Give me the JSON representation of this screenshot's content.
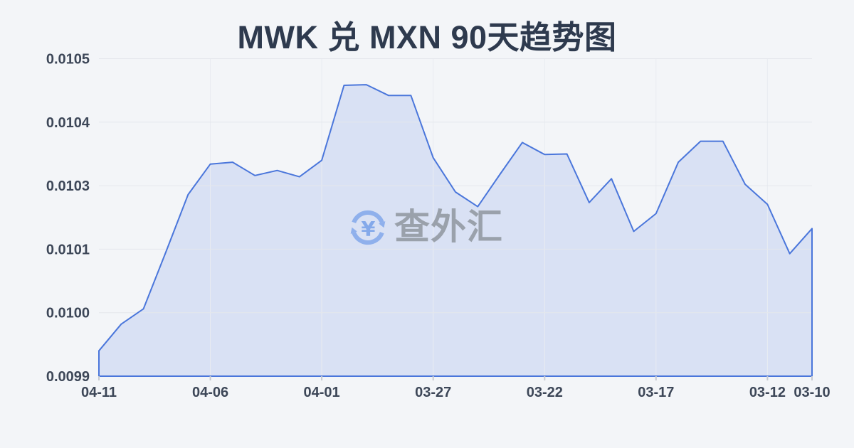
{
  "page": {
    "background": "#f3f5f8"
  },
  "watermark": {
    "text": "查外汇",
    "icon": "currency-exchange-refresh-yen-icon",
    "icon_color": "#8fb0ec",
    "yen_color": "#84a9ea",
    "text_color": "#9aa1ab"
  },
  "chart_data": {
    "type": "area",
    "title": "MWK 兑 MXN 90天趋势图",
    "dates": [
      "04-11",
      "04-10",
      "04-09",
      "04-08",
      "04-07",
      "04-06",
      "04-05",
      "04-04",
      "04-03",
      "04-02",
      "04-01",
      "03-31",
      "03-30",
      "03-29",
      "03-28",
      "03-27",
      "03-26",
      "03-25",
      "03-24",
      "03-23",
      "03-22",
      "03-21",
      "03-20",
      "03-19",
      "03-18",
      "03-17",
      "03-16",
      "03-15",
      "03-14",
      "03-13",
      "03-12",
      "03-11",
      "03-10"
    ],
    "values": [
      0.00994,
      0.009982,
      0.010006,
      0.010095,
      0.010272,
      0.010334,
      0.010337,
      0.010316,
      0.010324,
      0.010314,
      0.01034,
      0.010458,
      0.010459,
      0.010442,
      0.010442,
      0.010344,
      0.01028,
      0.010234,
      0.010318,
      0.010368,
      0.010349,
      0.01035,
      0.010247,
      0.010311,
      0.010156,
      0.010212,
      0.010337,
      0.01037,
      0.01037,
      0.010302,
      0.010241,
      0.010093,
      0.010165
    ],
    "x_tick_labels": [
      "04-11",
      "04-06",
      "04-01",
      "03-27",
      "03-22",
      "03-17",
      "03-12",
      "03-10"
    ],
    "y_tick_labels": [
      "0.0105",
      "0.0104",
      "0.0103",
      "0.0101",
      "0.0100",
      "0.0099"
    ],
    "ylim": [
      0.0099,
      0.0105
    ],
    "grid": true,
    "legend": false,
    "colors": {
      "line": "#4a76db",
      "fill": "#d9e1f4",
      "title": "#2e3a4e",
      "axis_text": "#3d4758",
      "gridline": "#e4e7ec",
      "vertical_gridline": "#e9ecf1",
      "axis_line": "#d5d8de",
      "tick": "#c6cad2",
      "background": "#f3f5f8"
    }
  }
}
